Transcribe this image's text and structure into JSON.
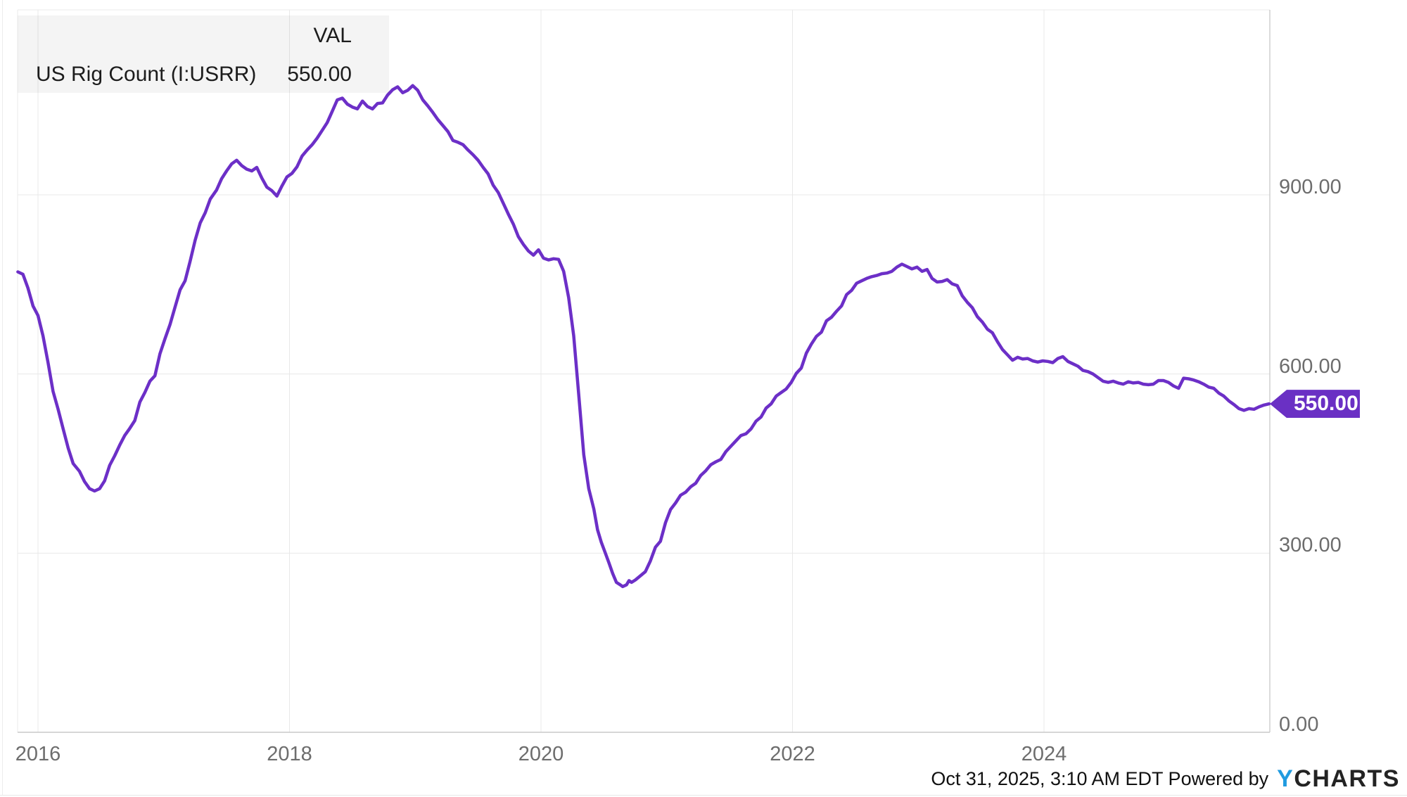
{
  "legend": {
    "series_name": "US Rig Count (I:USRR)",
    "value_header": "VAL",
    "value": "550.00"
  },
  "badge": {
    "label": "550.00"
  },
  "footer": {
    "timestamp": "Oct 31, 2025, 3:10 AM EDT Powered by",
    "brand_y": "Y",
    "brand_rest": "CHARTS"
  },
  "colors": {
    "line": "#6c2fc7",
    "badge_bg": "#6a30c4",
    "badge_text": "#ffffff",
    "grid": "#e8e8e8",
    "top_border": "#ebebeb",
    "left_border": "#ebebeb",
    "right_border": "#cfcfcf",
    "axis_line": "#c9c9c9",
    "tick_text": "#6d6d6d",
    "brand_blue": "#209be0"
  },
  "chart_data": {
    "type": "line",
    "title": "US Rig Count (I:USRR)",
    "series_name": "US Rig Count (I:USRR)",
    "last_value": 550.0,
    "legend_position": "top-left",
    "grid": true,
    "x_label_unit": "year",
    "x_ticks": [
      {
        "label": "2016",
        "year": 2016
      },
      {
        "label": "2018",
        "year": 2018
      },
      {
        "label": "2020",
        "year": 2020
      },
      {
        "label": "2022",
        "year": 2022
      },
      {
        "label": "2024",
        "year": 2024
      }
    ],
    "y_ticks": [
      {
        "label": "900.00",
        "value": 900
      },
      {
        "label": "600.00",
        "value": 600
      },
      {
        "label": "300.00",
        "value": 300
      },
      {
        "label": "0.00",
        "value": 0
      }
    ],
    "x_range_years": [
      2015.84,
      2025.79
    ],
    "y_axis_range": [
      0,
      1203
    ],
    "points": [
      [
        2015.84,
        771
      ],
      [
        2015.88,
        767
      ],
      [
        2015.92,
        744
      ],
      [
        2015.96,
        714
      ],
      [
        2016.0,
        698
      ],
      [
        2016.04,
        664
      ],
      [
        2016.08,
        619
      ],
      [
        2016.12,
        571
      ],
      [
        2016.16,
        541
      ],
      [
        2016.2,
        508
      ],
      [
        2016.24,
        476
      ],
      [
        2016.28,
        450
      ],
      [
        2016.33,
        437
      ],
      [
        2016.37,
        420
      ],
      [
        2016.41,
        408
      ],
      [
        2016.45,
        404
      ],
      [
        2016.49,
        408
      ],
      [
        2016.53,
        421
      ],
      [
        2016.57,
        447
      ],
      [
        2016.61,
        463
      ],
      [
        2016.65,
        481
      ],
      [
        2016.69,
        497
      ],
      [
        2016.73,
        509
      ],
      [
        2016.77,
        522
      ],
      [
        2016.81,
        553
      ],
      [
        2016.85,
        569
      ],
      [
        2016.89,
        588
      ],
      [
        2016.93,
        597
      ],
      [
        2016.97,
        634
      ],
      [
        2017.01,
        659
      ],
      [
        2017.05,
        683
      ],
      [
        2017.09,
        712
      ],
      [
        2017.13,
        741
      ],
      [
        2017.17,
        756
      ],
      [
        2017.21,
        789
      ],
      [
        2017.25,
        824
      ],
      [
        2017.29,
        853
      ],
      [
        2017.33,
        870
      ],
      [
        2017.37,
        893
      ],
      [
        2017.42,
        908
      ],
      [
        2017.46,
        927
      ],
      [
        2017.5,
        940
      ],
      [
        2017.54,
        952
      ],
      [
        2017.58,
        958
      ],
      [
        2017.62,
        949
      ],
      [
        2017.66,
        943
      ],
      [
        2017.7,
        940
      ],
      [
        2017.74,
        946
      ],
      [
        2017.78,
        928
      ],
      [
        2017.82,
        913
      ],
      [
        2017.86,
        907
      ],
      [
        2017.9,
        898
      ],
      [
        2017.94,
        915
      ],
      [
        2017.98,
        930
      ],
      [
        2018.02,
        936
      ],
      [
        2018.06,
        947
      ],
      [
        2018.1,
        965
      ],
      [
        2018.14,
        975
      ],
      [
        2018.18,
        984
      ],
      [
        2018.22,
        995
      ],
      [
        2018.26,
        1008
      ],
      [
        2018.3,
        1021
      ],
      [
        2018.34,
        1040
      ],
      [
        2018.38,
        1059
      ],
      [
        2018.42,
        1062
      ],
      [
        2018.46,
        1052
      ],
      [
        2018.5,
        1047
      ],
      [
        2018.54,
        1044
      ],
      [
        2018.58,
        1057
      ],
      [
        2018.62,
        1048
      ],
      [
        2018.66,
        1044
      ],
      [
        2018.7,
        1053
      ],
      [
        2018.74,
        1054
      ],
      [
        2018.78,
        1067
      ],
      [
        2018.82,
        1076
      ],
      [
        2018.86,
        1081
      ],
      [
        2018.9,
        1071
      ],
      [
        2018.94,
        1075
      ],
      [
        2018.98,
        1083
      ],
      [
        2019.02,
        1075
      ],
      [
        2019.06,
        1059
      ],
      [
        2019.1,
        1049
      ],
      [
        2019.14,
        1038
      ],
      [
        2019.18,
        1026
      ],
      [
        2019.22,
        1016
      ],
      [
        2019.26,
        1006
      ],
      [
        2019.3,
        991
      ],
      [
        2019.34,
        988
      ],
      [
        2019.38,
        984
      ],
      [
        2019.42,
        975
      ],
      [
        2019.46,
        967
      ],
      [
        2019.5,
        958
      ],
      [
        2019.54,
        946
      ],
      [
        2019.58,
        935
      ],
      [
        2019.62,
        916
      ],
      [
        2019.66,
        904
      ],
      [
        2019.7,
        886
      ],
      [
        2019.74,
        868
      ],
      [
        2019.78,
        851
      ],
      [
        2019.82,
        830
      ],
      [
        2019.86,
        817
      ],
      [
        2019.9,
        806
      ],
      [
        2019.94,
        799
      ],
      [
        2019.98,
        808
      ],
      [
        2020.02,
        794
      ],
      [
        2020.06,
        791
      ],
      [
        2020.1,
        793
      ],
      [
        2020.14,
        792
      ],
      [
        2020.18,
        772
      ],
      [
        2020.22,
        728
      ],
      [
        2020.26,
        664
      ],
      [
        2020.3,
        566
      ],
      [
        2020.34,
        465
      ],
      [
        2020.38,
        408
      ],
      [
        2020.42,
        374
      ],
      [
        2020.45,
        339
      ],
      [
        2020.48,
        318
      ],
      [
        2020.51,
        301
      ],
      [
        2020.54,
        284
      ],
      [
        2020.57,
        266
      ],
      [
        2020.6,
        251
      ],
      [
        2020.63,
        247
      ],
      [
        2020.65,
        244
      ],
      [
        2020.68,
        247
      ],
      [
        2020.7,
        254
      ],
      [
        2020.72,
        251
      ],
      [
        2020.75,
        255
      ],
      [
        2020.79,
        262
      ],
      [
        2020.83,
        269
      ],
      [
        2020.87,
        287
      ],
      [
        2020.91,
        310
      ],
      [
        2020.95,
        320
      ],
      [
        2020.99,
        351
      ],
      [
        2021.03,
        373
      ],
      [
        2021.07,
        384
      ],
      [
        2021.11,
        397
      ],
      [
        2021.15,
        402
      ],
      [
        2021.19,
        411
      ],
      [
        2021.23,
        417
      ],
      [
        2021.27,
        430
      ],
      [
        2021.31,
        438
      ],
      [
        2021.35,
        448
      ],
      [
        2021.39,
        453
      ],
      [
        2021.43,
        457
      ],
      [
        2021.47,
        470
      ],
      [
        2021.51,
        479
      ],
      [
        2021.55,
        488
      ],
      [
        2021.59,
        497
      ],
      [
        2021.63,
        500
      ],
      [
        2021.67,
        508
      ],
      [
        2021.71,
        521
      ],
      [
        2021.75,
        528
      ],
      [
        2021.79,
        543
      ],
      [
        2021.83,
        550
      ],
      [
        2021.87,
        563
      ],
      [
        2021.91,
        569
      ],
      [
        2021.95,
        575
      ],
      [
        2021.99,
        586
      ],
      [
        2022.03,
        601
      ],
      [
        2022.07,
        610
      ],
      [
        2022.11,
        635
      ],
      [
        2022.15,
        650
      ],
      [
        2022.19,
        663
      ],
      [
        2022.23,
        670
      ],
      [
        2022.27,
        689
      ],
      [
        2022.31,
        695
      ],
      [
        2022.35,
        705
      ],
      [
        2022.39,
        714
      ],
      [
        2022.43,
        733
      ],
      [
        2022.47,
        740
      ],
      [
        2022.51,
        752
      ],
      [
        2022.55,
        756
      ],
      [
        2022.59,
        760
      ],
      [
        2022.63,
        763
      ],
      [
        2022.67,
        765
      ],
      [
        2022.71,
        768
      ],
      [
        2022.75,
        769
      ],
      [
        2022.79,
        772
      ],
      [
        2022.83,
        779
      ],
      [
        2022.87,
        784
      ],
      [
        2022.91,
        780
      ],
      [
        2022.95,
        776
      ],
      [
        2022.99,
        779
      ],
      [
        2023.03,
        772
      ],
      [
        2023.07,
        775
      ],
      [
        2023.11,
        760
      ],
      [
        2023.15,
        754
      ],
      [
        2023.19,
        755
      ],
      [
        2023.23,
        758
      ],
      [
        2023.27,
        751
      ],
      [
        2023.31,
        748
      ],
      [
        2023.35,
        731
      ],
      [
        2023.39,
        720
      ],
      [
        2023.43,
        711
      ],
      [
        2023.47,
        696
      ],
      [
        2023.51,
        687
      ],
      [
        2023.55,
        675
      ],
      [
        2023.59,
        669
      ],
      [
        2023.63,
        654
      ],
      [
        2023.67,
        641
      ],
      [
        2023.71,
        632
      ],
      [
        2023.75,
        623
      ],
      [
        2023.79,
        628
      ],
      [
        2023.83,
        625
      ],
      [
        2023.87,
        626
      ],
      [
        2023.91,
        622
      ],
      [
        2023.95,
        620
      ],
      [
        2023.99,
        622
      ],
      [
        2024.03,
        621
      ],
      [
        2024.07,
        619
      ],
      [
        2024.11,
        626
      ],
      [
        2024.15,
        629
      ],
      [
        2024.19,
        621
      ],
      [
        2024.23,
        617
      ],
      [
        2024.27,
        613
      ],
      [
        2024.31,
        606
      ],
      [
        2024.35,
        604
      ],
      [
        2024.39,
        600
      ],
      [
        2024.43,
        594
      ],
      [
        2024.47,
        588
      ],
      [
        2024.51,
        586
      ],
      [
        2024.55,
        588
      ],
      [
        2024.59,
        585
      ],
      [
        2024.63,
        583
      ],
      [
        2024.67,
        587
      ],
      [
        2024.71,
        585
      ],
      [
        2024.75,
        586
      ],
      [
        2024.79,
        583
      ],
      [
        2024.83,
        582
      ],
      [
        2024.87,
        583
      ],
      [
        2024.91,
        589
      ],
      [
        2024.95,
        589
      ],
      [
        2024.99,
        586
      ],
      [
        2025.03,
        580
      ],
      [
        2025.07,
        576
      ],
      [
        2025.11,
        593
      ],
      [
        2025.15,
        592
      ],
      [
        2025.19,
        590
      ],
      [
        2025.23,
        587
      ],
      [
        2025.27,
        583
      ],
      [
        2025.31,
        578
      ],
      [
        2025.35,
        576
      ],
      [
        2025.39,
        568
      ],
      [
        2025.43,
        563
      ],
      [
        2025.47,
        555
      ],
      [
        2025.51,
        549
      ],
      [
        2025.55,
        542
      ],
      [
        2025.59,
        539
      ],
      [
        2025.63,
        542
      ],
      [
        2025.67,
        541
      ],
      [
        2025.71,
        545
      ],
      [
        2025.75,
        548
      ],
      [
        2025.79,
        550
      ]
    ]
  }
}
